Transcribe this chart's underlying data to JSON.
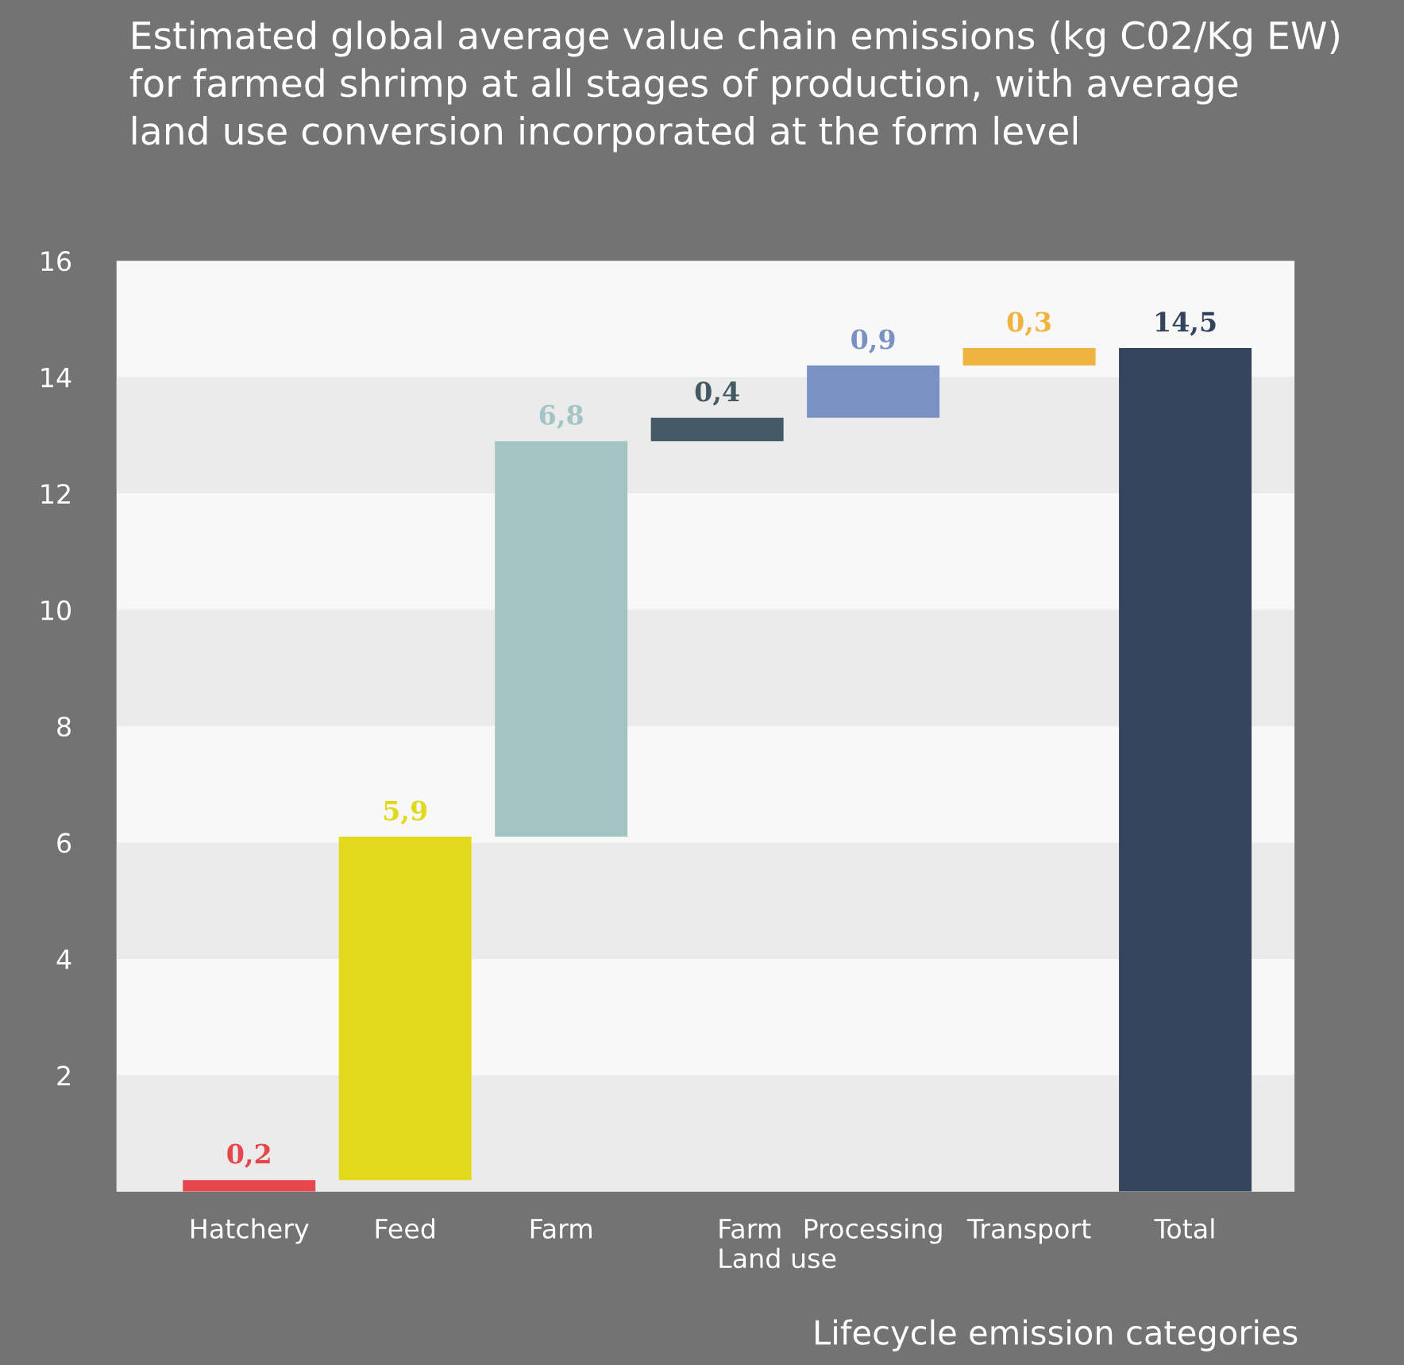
{
  "chart_data": {
    "type": "bar",
    "title": "Estimated global average value chain emissions (kg C02/Kg EW)\nfor farmed shrimp at all stages of production, with average\nland use conversion incorporated at the form level",
    "xlabel": "Lifecycle emission categories",
    "categories": [
      "Hatchery",
      "Feed",
      "Farm",
      "Farm\nLand use",
      "Processing",
      "Transport",
      "Total"
    ],
    "values": [
      0.2,
      5.9,
      6.8,
      0.4,
      0.9,
      0.3,
      14.5
    ],
    "base": [
      0,
      0.2,
      6.1,
      12.9,
      13.3,
      14.2,
      0
    ],
    "colors": [
      "#e5474d",
      "#e2d81c",
      "#a2c4c3",
      "#435a65",
      "#7a91c4",
      "#eeb43f",
      "#33445c"
    ],
    "value_labels": [
      "0,2",
      "5,9",
      "6,8",
      "0,4",
      "0,9",
      "0,3",
      "14,5"
    ],
    "ylim": [
      0,
      16
    ],
    "yticks": [
      {
        "value": 0,
        "label": null
      },
      2,
      4,
      6,
      8,
      10,
      12,
      14,
      16
    ],
    "bands": [
      {
        "axis": "y",
        "from": 0,
        "to": 2,
        "color": "#ebebeb"
      },
      {
        "axis": "y",
        "from": 4,
        "to": 6,
        "color": "#ebebeb"
      },
      {
        "axis": "y",
        "from": 8,
        "to": 10,
        "color": "#ebebeb"
      },
      {
        "axis": "y",
        "from": 12,
        "to": 14,
        "color": "#ebebeb"
      }
    ],
    "grid": false,
    "legend": false
  }
}
